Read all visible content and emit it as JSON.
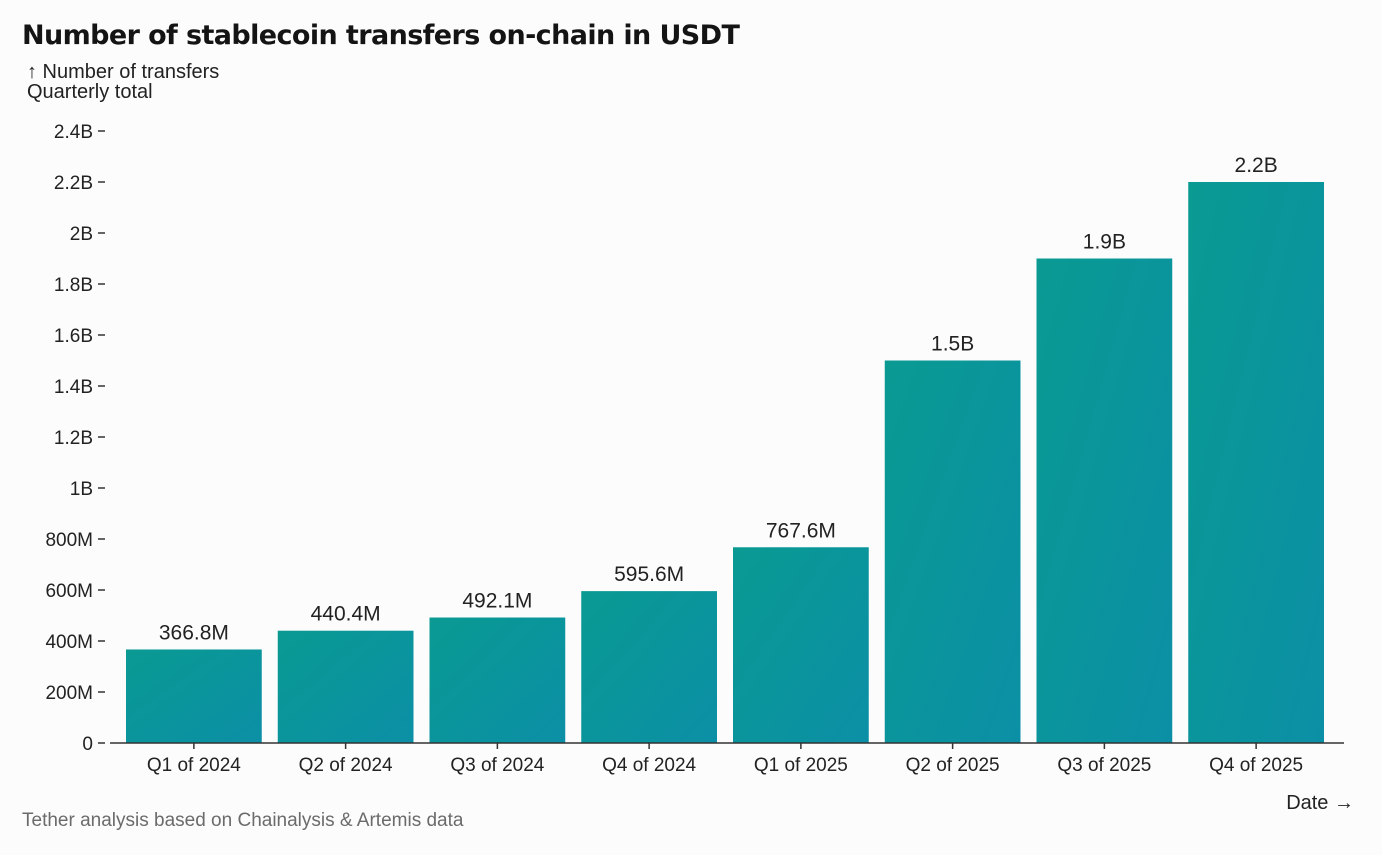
{
  "title": "Number of stablecoin transfers on-chain in USDT",
  "y_axis": {
    "label_line1": "↑ Number of transfers",
    "label_line2": "Quarterly total"
  },
  "x_axis": {
    "label": "Date →"
  },
  "source": "Tether analysis based on Chainalysis & Artemis data",
  "colors": {
    "bar_start": "#0a9a92",
    "bar_end": "#0b8fa6",
    "axis": "#333333"
  },
  "chart_data": {
    "type": "bar",
    "title": "Number of stablecoin transfers on-chain in USDT",
    "xlabel": "Date",
    "ylabel": "Number of transfers (Quarterly total)",
    "ylim": [
      0,
      2400000000
    ],
    "y_ticks": [
      {
        "value": 0,
        "label": "0"
      },
      {
        "value": 200000000,
        "label": "200M"
      },
      {
        "value": 400000000,
        "label": "400M"
      },
      {
        "value": 600000000,
        "label": "600M"
      },
      {
        "value": 800000000,
        "label": "800M"
      },
      {
        "value": 1000000000,
        "label": "1B"
      },
      {
        "value": 1200000000,
        "label": "1.2B"
      },
      {
        "value": 1400000000,
        "label": "1.4B"
      },
      {
        "value": 1600000000,
        "label": "1.6B"
      },
      {
        "value": 1800000000,
        "label": "1.8B"
      },
      {
        "value": 2000000000,
        "label": "2B"
      },
      {
        "value": 2200000000,
        "label": "2.2B"
      },
      {
        "value": 2400000000,
        "label": "2.4B"
      }
    ],
    "categories": [
      "Q1 of 2024",
      "Q2 of 2024",
      "Q3 of 2024",
      "Q4 of 2024",
      "Q1 of 2025",
      "Q2 of 2025",
      "Q3 of 2025",
      "Q4 of 2025"
    ],
    "values": [
      366800000,
      440400000,
      492100000,
      595600000,
      767600000,
      1500000000,
      1900000000,
      2200000000
    ],
    "value_labels": [
      "366.8M",
      "440.4M",
      "492.1M",
      "595.6M",
      "767.6M",
      "1.5B",
      "1.9B",
      "2.2B"
    ],
    "grid": false,
    "legend": "none"
  }
}
